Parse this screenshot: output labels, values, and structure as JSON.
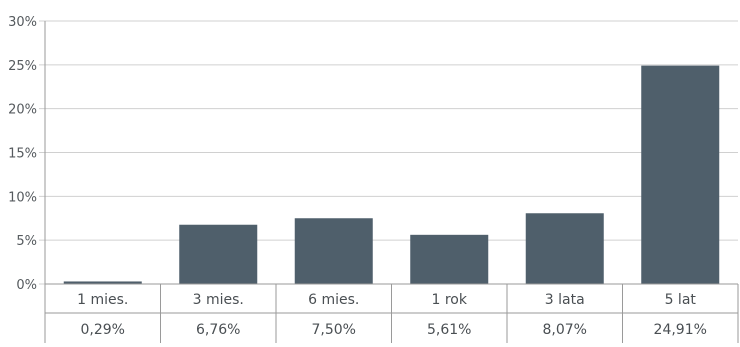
{
  "chart_data": {
    "type": "bar",
    "categories": [
      "1 mies.",
      "3 mies.",
      "6 mies.",
      "1 rok",
      "3 lata",
      "5 lat"
    ],
    "values": [
      0.29,
      6.76,
      7.5,
      5.61,
      8.07,
      24.91
    ],
    "value_labels": [
      "0,29%",
      "6,76%",
      "7,50%",
      "5,61%",
      "8,07%",
      "24,91%"
    ],
    "yticks": [
      0,
      5,
      10,
      15,
      20,
      25,
      30
    ],
    "ytick_labels": [
      "0%",
      "5%",
      "10%",
      "15%",
      "20%",
      "25%",
      "30%"
    ],
    "ylim": [
      0,
      30
    ],
    "grid": true,
    "colors": {
      "bar": "#4f5f6b",
      "grid": "#d0d0d0",
      "axis": "#9a9a9a"
    }
  }
}
